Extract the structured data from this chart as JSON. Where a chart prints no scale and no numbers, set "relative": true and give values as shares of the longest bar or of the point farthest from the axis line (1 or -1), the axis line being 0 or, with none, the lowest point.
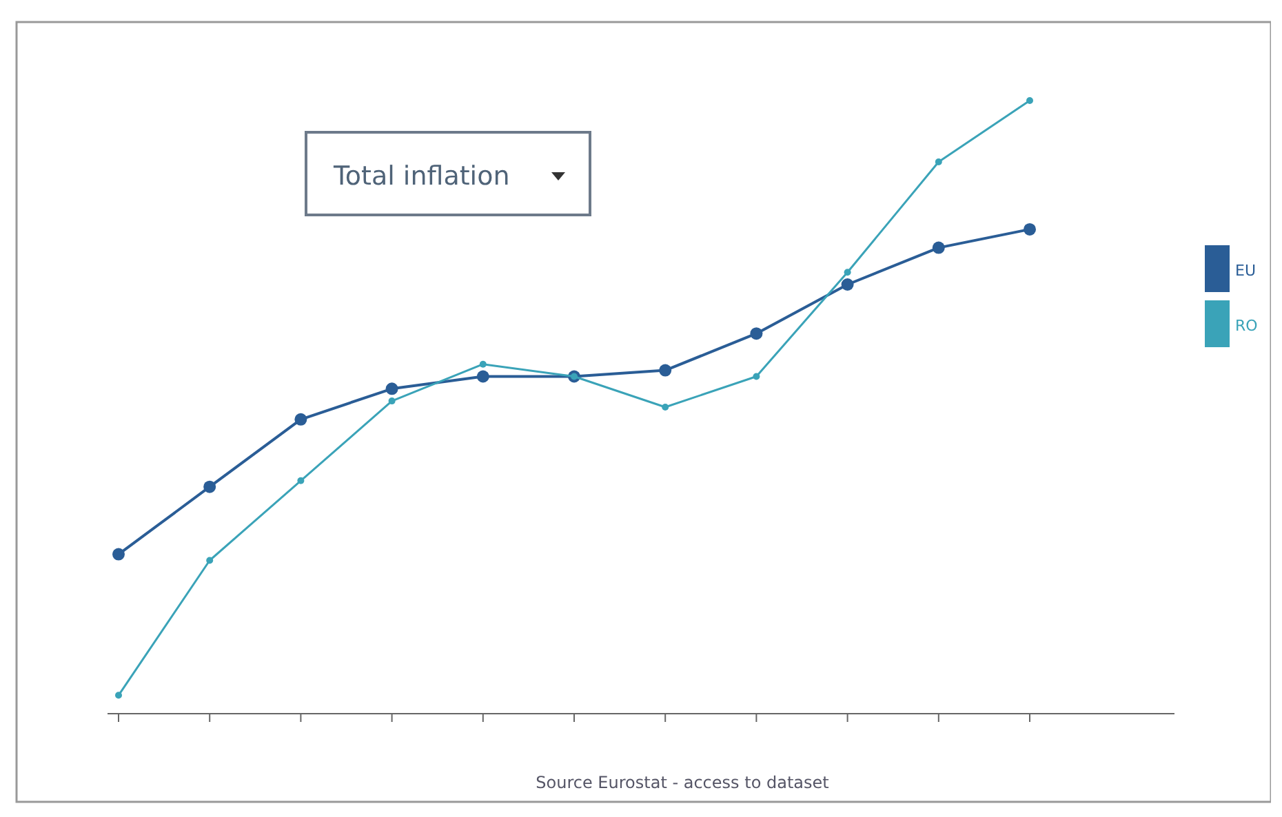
{
  "chart_data": {
    "type": "line",
    "title": "Total inflation",
    "annotations": [
      "Source Eurostat - access to dataset"
    ],
    "categories": [
      null,
      null,
      null,
      null,
      null,
      null,
      null,
      null,
      null,
      null,
      null
    ],
    "relative": true,
    "marker": "circle",
    "legend": "right",
    "series": [
      {
        "name": "EU",
        "color": "#2a5d96",
        "values": [
          0.26,
          0.37,
          0.48,
          0.53,
          0.55,
          0.55,
          0.56,
          0.62,
          0.7,
          0.76,
          0.79
        ]
      },
      {
        "name": "RO",
        "color": "#3aa3b8",
        "values": [
          0.03,
          0.25,
          0.38,
          0.51,
          0.57,
          0.55,
          0.5,
          0.55,
          0.72,
          0.9,
          1
        ]
      }
    ]
  }
}
